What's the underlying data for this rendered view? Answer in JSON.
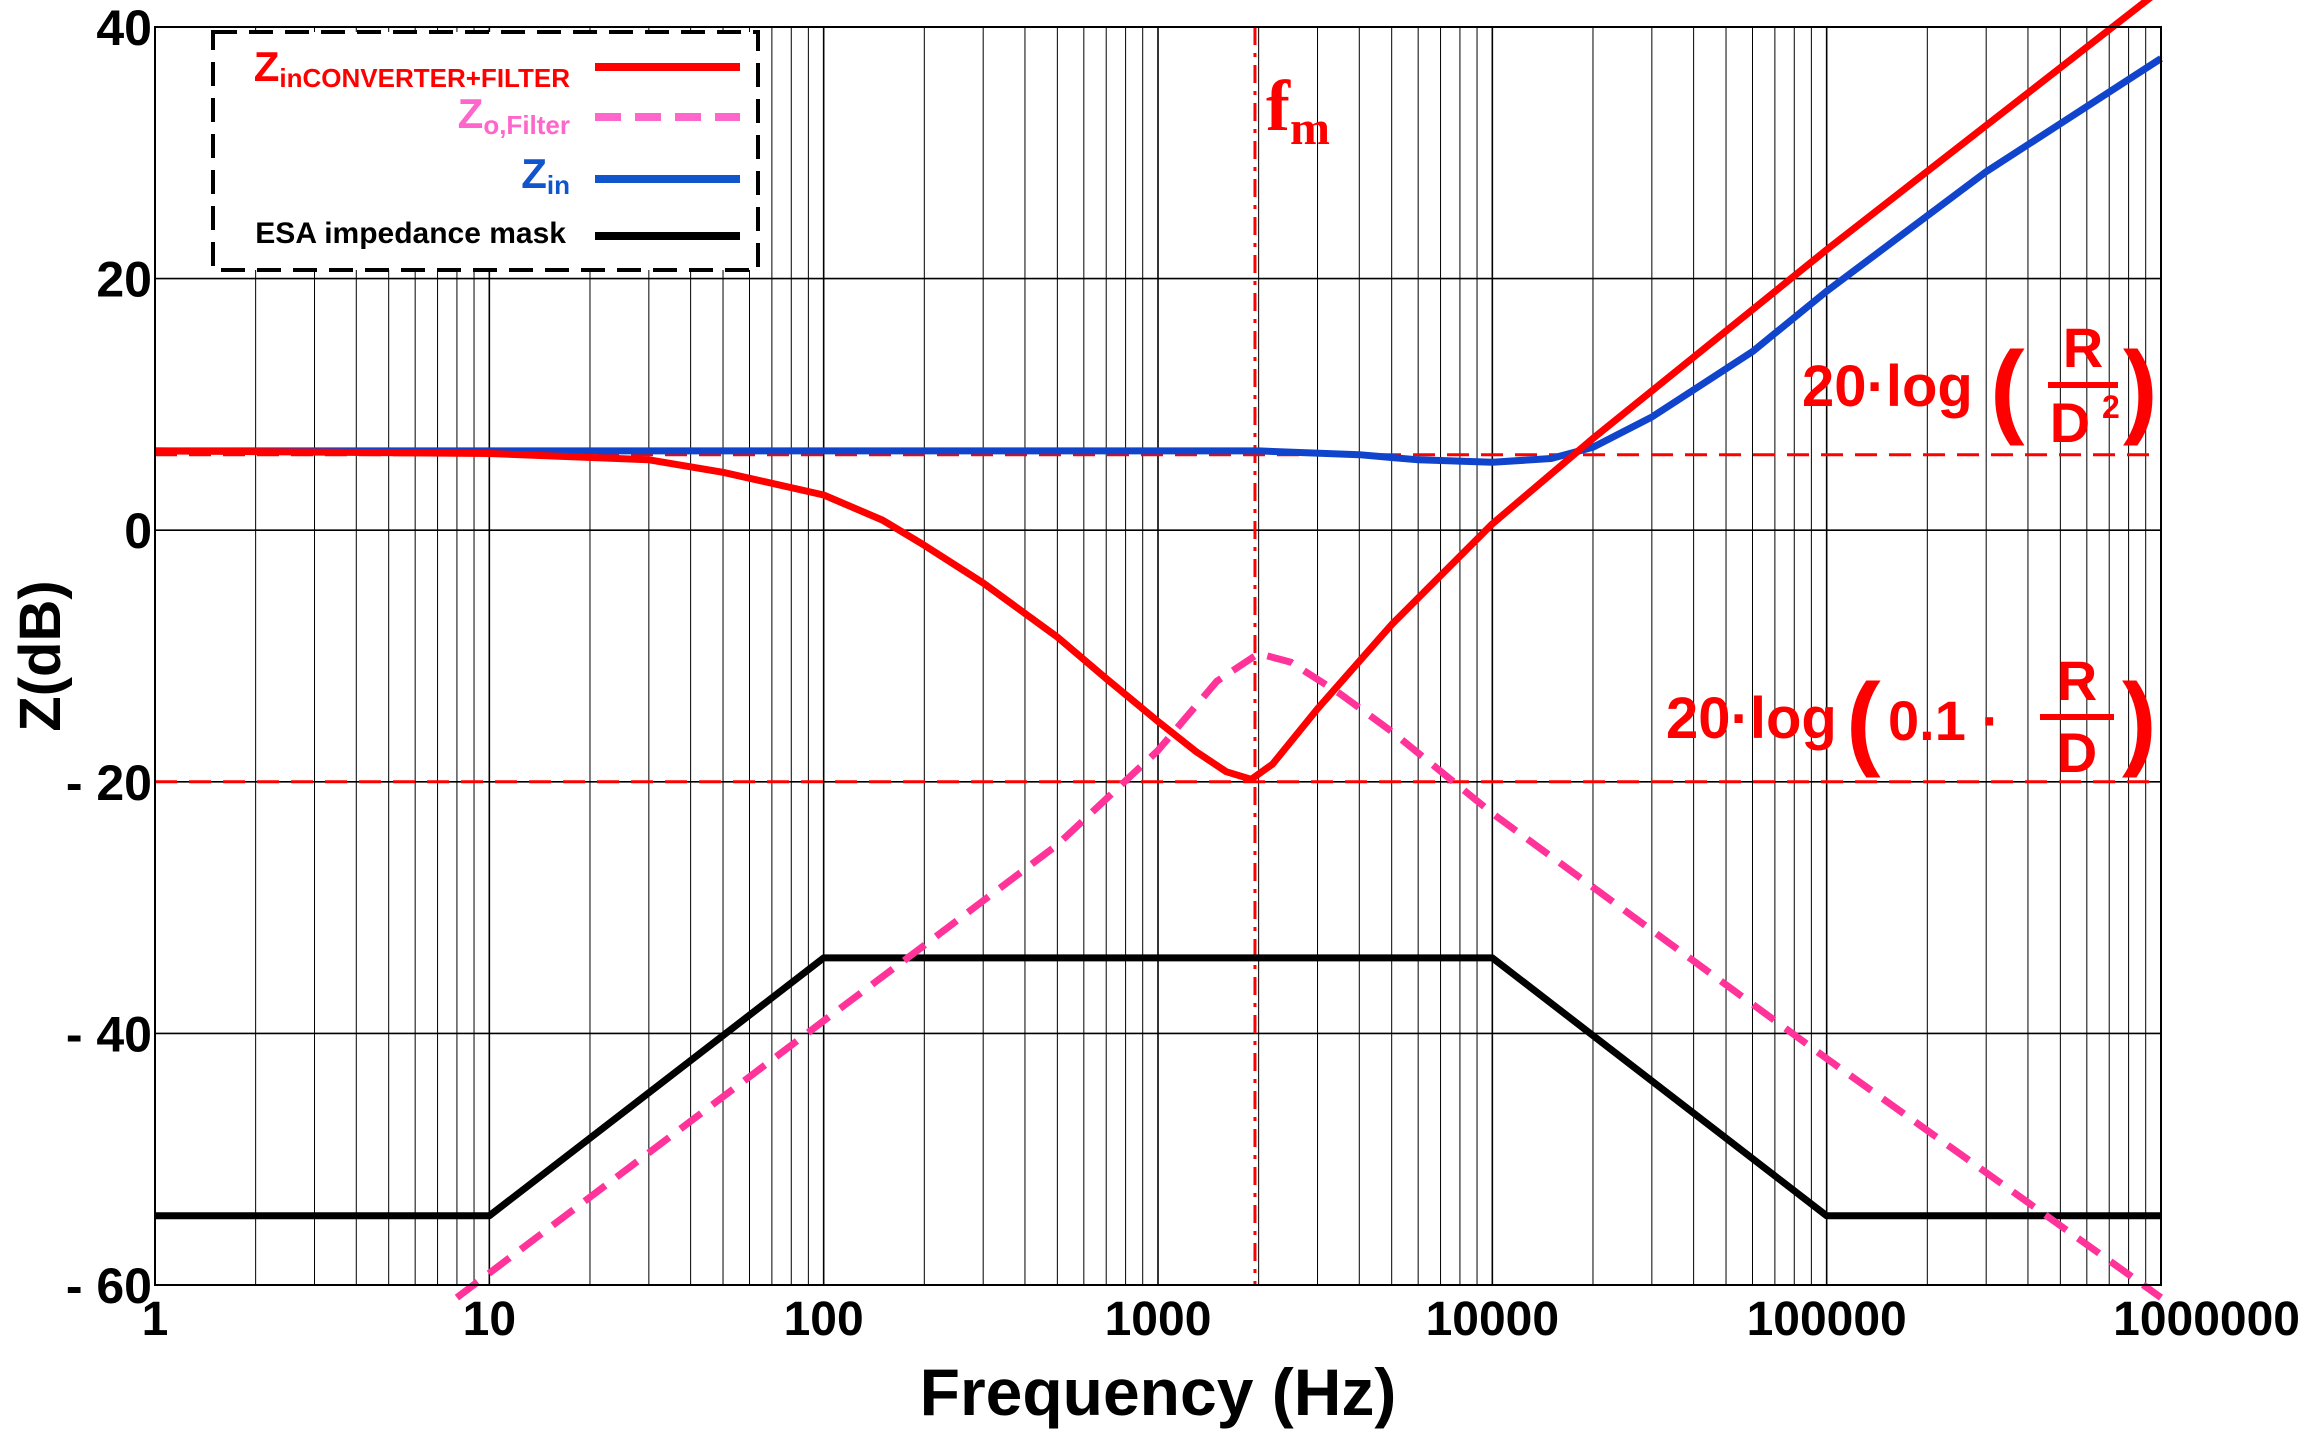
{
  "chart_data": {
    "type": "line",
    "xscale": "log",
    "xlabel": "Frequency (Hz)",
    "ylabel": "Z(dB)",
    "xlim": [
      1,
      1000000
    ],
    "ylim": [
      -60,
      40
    ],
    "xticks": [
      {
        "value": 1,
        "label": "1"
      },
      {
        "value": 10,
        "label": "10"
      },
      {
        "value": 100,
        "label": "100"
      },
      {
        "value": 1000,
        "label": "1000"
      },
      {
        "value": 10000,
        "label": "10000"
      },
      {
        "value": 100000,
        "label": "100000"
      },
      {
        "value": 1000000,
        "label": "1000000"
      }
    ],
    "yticks": [
      {
        "value": 40,
        "label": "40"
      },
      {
        "value": 20,
        "label": "20"
      },
      {
        "value": 0,
        "label": "0"
      },
      {
        "value": -20,
        "label": "- 20"
      },
      {
        "value": -40,
        "label": "- 40"
      },
      {
        "value": -60,
        "label": "- 60"
      }
    ],
    "grid": true,
    "series": [
      {
        "name": "ZinCONVERTER+FILTER",
        "color": "#ff0000",
        "style": "solid",
        "points": [
          [
            1,
            6.3
          ],
          [
            10,
            6.1
          ],
          [
            30,
            5.6
          ],
          [
            50,
            4.6
          ],
          [
            100,
            2.8
          ],
          [
            150,
            0.8
          ],
          [
            200,
            -1.2
          ],
          [
            300,
            -4.2
          ],
          [
            500,
            -8.5
          ],
          [
            700,
            -11.8
          ],
          [
            1000,
            -15.2
          ],
          [
            1300,
            -17.6
          ],
          [
            1600,
            -19.2
          ],
          [
            1900,
            -19.8
          ],
          [
            2200,
            -18.6
          ],
          [
            3000,
            -14.2
          ],
          [
            5000,
            -7.5
          ],
          [
            10000,
            0.5
          ],
          [
            20000,
            7.3
          ],
          [
            100000,
            22.3
          ],
          [
            1000000,
            43
          ]
        ]
      },
      {
        "name": "Zo,Filter",
        "color": "#ff3399",
        "style": "dashed",
        "points": [
          [
            8,
            -61
          ],
          [
            100,
            -39
          ],
          [
            200,
            -33
          ],
          [
            500,
            -25
          ],
          [
            1000,
            -17.5
          ],
          [
            1500,
            -12
          ],
          [
            2000,
            -9.8
          ],
          [
            2500,
            -10.5
          ],
          [
            3500,
            -13
          ],
          [
            5000,
            -16
          ],
          [
            10000,
            -22.5
          ],
          [
            100000,
            -42
          ],
          [
            1000000,
            -61
          ]
        ]
      },
      {
        "name": "Zin",
        "color": "#1144cc",
        "style": "solid",
        "points": [
          [
            1,
            6.3
          ],
          [
            100,
            6.3
          ],
          [
            2000,
            6.3
          ],
          [
            4000,
            6.0
          ],
          [
            6000,
            5.6
          ],
          [
            10000,
            5.4
          ],
          [
            15000,
            5.7
          ],
          [
            20000,
            6.6
          ],
          [
            30000,
            9.0
          ],
          [
            60000,
            14.2
          ],
          [
            100000,
            19.0
          ],
          [
            300000,
            28.5
          ],
          [
            1000000,
            37.5
          ]
        ]
      },
      {
        "name": "ESA impedance mask",
        "color": "#000000",
        "style": "solid",
        "points": [
          [
            1,
            -54.5
          ],
          [
            10,
            -54.5
          ],
          [
            100,
            -34
          ],
          [
            10000,
            -34
          ],
          [
            100000,
            -54.5
          ],
          [
            1000000,
            -54.5
          ]
        ]
      }
    ],
    "reference_lines": [
      {
        "orientation": "vertical",
        "x": 1950,
        "label": "f",
        "label_sub": "m",
        "color": "#ff0000"
      },
      {
        "orientation": "horizontal",
        "y": 6,
        "color": "#ff0000"
      },
      {
        "orientation": "horizontal",
        "y": -20,
        "color": "#ff0000"
      }
    ],
    "annotations": {
      "upper": {
        "prefix": "20·log",
        "numerator": "R",
        "denominator": "D",
        "denominator_exp": "2"
      },
      "lower": {
        "prefix": "20·log",
        "factor": "0.1 ·",
        "numerator": "R",
        "denominator": "D"
      }
    },
    "legend": {
      "position": "top-left",
      "entries": [
        {
          "main": "Z",
          "sub": "inCONVERTER+FILTER",
          "color": "#ff0000",
          "line_color": "#ff0000",
          "dashed": false
        },
        {
          "main": "Z",
          "sub": "o,Filter",
          "color": "#ff66cc",
          "line_color": "#ff66cc",
          "dashed": true
        },
        {
          "main": "Z",
          "sub": "in",
          "color": "#1155cc",
          "line_color": "#1155cc",
          "dashed": false
        },
        {
          "main": "ESA impedance mask",
          "sub": "",
          "color": "#000000",
          "line_color": "#000000",
          "dashed": false
        }
      ]
    }
  }
}
